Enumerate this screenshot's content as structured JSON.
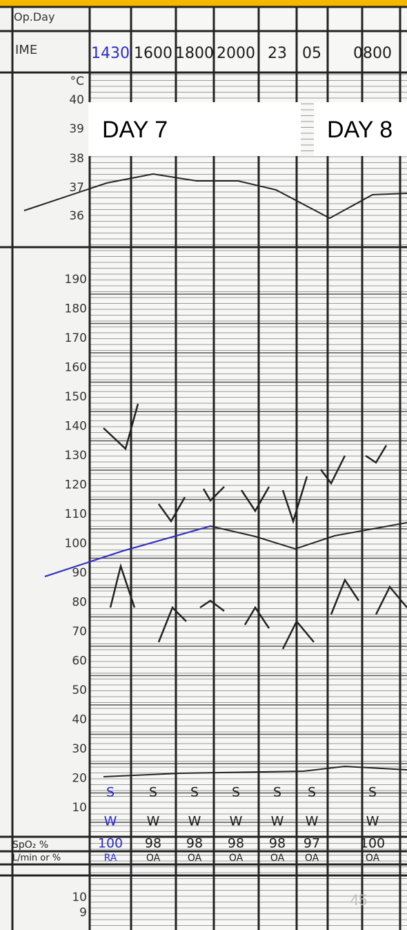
{
  "header": {
    "op_day": "Op.Day",
    "time": "IME"
  },
  "temperature": {
    "unit": "°C",
    "scale": [
      "40",
      "39",
      "38",
      "37",
      "36"
    ]
  },
  "overlays": {
    "day_7": "DAY 7",
    "day_8": "DAY 8"
  },
  "pulse_scale": [
    "190",
    "180",
    "170",
    "160",
    "150",
    "140",
    "130",
    "120",
    "110",
    "100",
    "90",
    "80",
    "70",
    "60",
    "50",
    "40",
    "30",
    "20",
    "10"
  ],
  "handwritten": {
    "times": [
      "1430",
      "1600",
      "1800",
      "2000",
      "23",
      "05",
      "0800"
    ],
    "stool": [
      "S",
      "S",
      "S",
      "S",
      "S",
      "S",
      "S"
    ],
    "urine": [
      "W",
      "W",
      "W",
      "W",
      "W",
      "W",
      "W"
    ],
    "spo2": [
      "100",
      "98",
      "98",
      "98",
      "98",
      "97",
      "100"
    ],
    "oxygen": [
      "RA",
      "OA",
      "OA",
      "OA",
      "OA",
      "OA",
      "OA"
    ]
  },
  "rows": {
    "spo2": "SpO₂ %",
    "oxygen": "L/min or %"
  },
  "lower_scale": [
    "10",
    "9"
  ],
  "slide_number": "45"
}
